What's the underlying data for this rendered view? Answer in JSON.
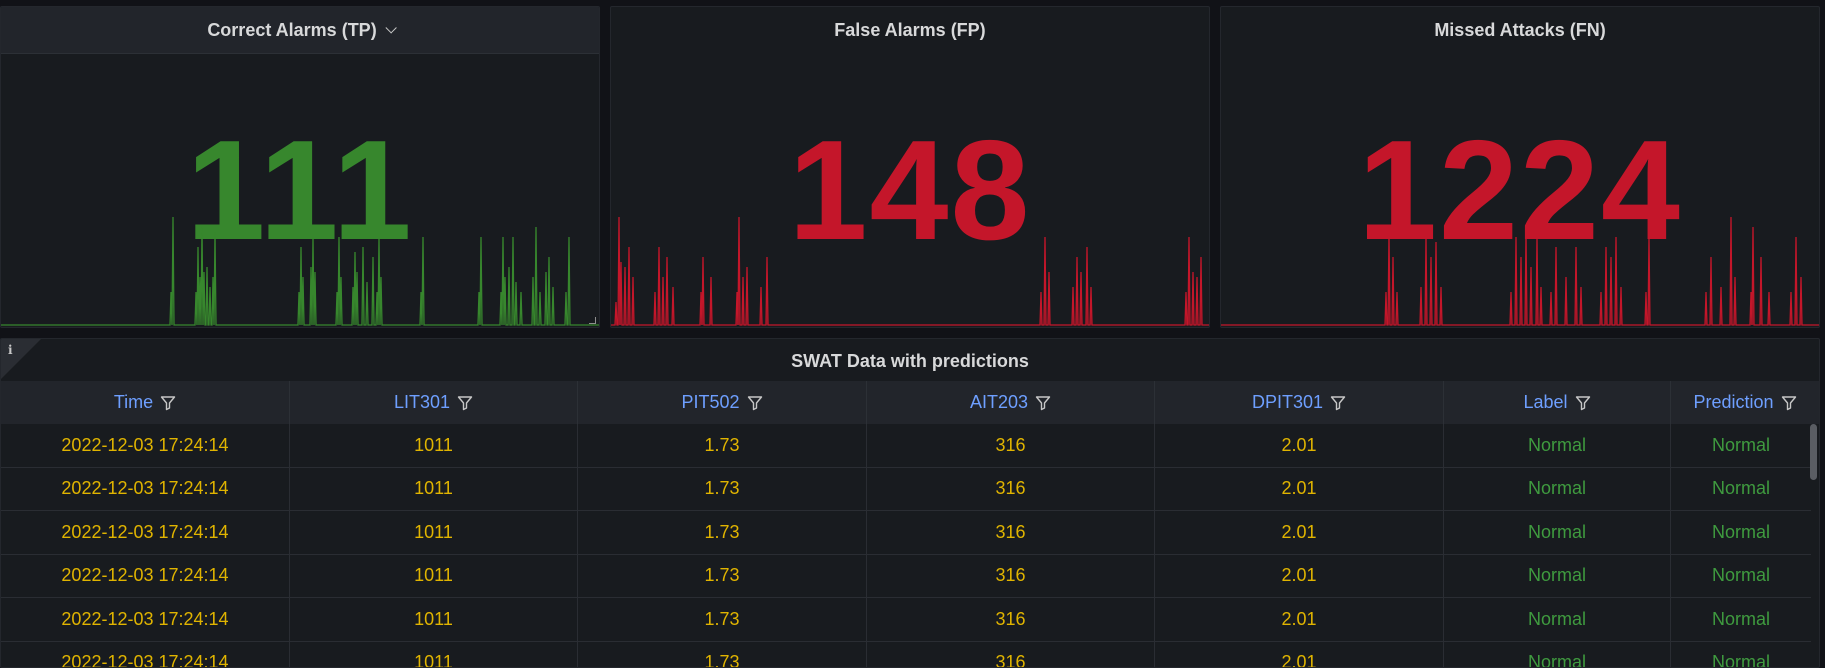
{
  "stats": [
    {
      "title": "Correct Alarms (TP)",
      "value": "111",
      "color": "#37872d",
      "sparkline": [
        0,
        0,
        0,
        0,
        0,
        0,
        0,
        0,
        0,
        0,
        0,
        0,
        0,
        0,
        0,
        0,
        0,
        0,
        0,
        0,
        0,
        0,
        0,
        0,
        0,
        0,
        0,
        0,
        0,
        0,
        0,
        0,
        0,
        0,
        0,
        0,
        0,
        0,
        0,
        0,
        0,
        0,
        0,
        0,
        0,
        0,
        0,
        0,
        0,
        0,
        0,
        0,
        0,
        0,
        0,
        0,
        0,
        0,
        0,
        0,
        0,
        0,
        0,
        0,
        0,
        0,
        0,
        0,
        0,
        0,
        0,
        0,
        0,
        0,
        0,
        0,
        0,
        0,
        0,
        0,
        0,
        0,
        0,
        0,
        0,
        0,
        0,
        0,
        0,
        0,
        0,
        0,
        0,
        0,
        0,
        0,
        0,
        0,
        0,
        0,
        0,
        0,
        0,
        0,
        0,
        0,
        0,
        0,
        0,
        0,
        0,
        0,
        0,
        0,
        0,
        0,
        0,
        0,
        0,
        0,
        0,
        0,
        0,
        0,
        0,
        0,
        0,
        0,
        0,
        0,
        0,
        0,
        0,
        0,
        0,
        0,
        0,
        0,
        0,
        0,
        0,
        0,
        0,
        0,
        0,
        0,
        0,
        0,
        0,
        0,
        0,
        0,
        0,
        0,
        0,
        0,
        0,
        0,
        0,
        0,
        0,
        0,
        0,
        0,
        0,
        0,
        0,
        0,
        0,
        0,
        0,
        0,
        0,
        0,
        0,
        0,
        0,
        0,
        0,
        0,
        0,
        0,
        0,
        0,
        0,
        0,
        0,
        0,
        0,
        0,
        0,
        0,
        0,
        0,
        0,
        0,
        0,
        0,
        0,
        0,
        0,
        0,
        0,
        0,
        0,
        0,
        0,
        0,
        0,
        0,
        0,
        0,
        0,
        0,
        0,
        0,
        0,
        0,
        0,
        0
      ]
    },
    {
      "title": "False Alarms (FP)",
      "value": "148",
      "color": "#c4162a",
      "sparkline": []
    },
    {
      "title": "Missed Attacks (FN)",
      "value": "1224",
      "color": "#c4162a",
      "sparkline": []
    }
  ],
  "table": {
    "title": "SWAT Data with predictions",
    "columns": [
      "Time",
      "LIT301",
      "PIT502",
      "AIT203",
      "DPIT301",
      "Label",
      "Prediction"
    ],
    "rows": [
      [
        "2022-12-03 17:24:14",
        "1011",
        "1.73",
        "316",
        "2.01",
        "Normal",
        "Normal"
      ],
      [
        "2022-12-03 17:24:14",
        "1011",
        "1.73",
        "316",
        "2.01",
        "Normal",
        "Normal"
      ],
      [
        "2022-12-03 17:24:14",
        "1011",
        "1.73",
        "316",
        "2.01",
        "Normal",
        "Normal"
      ],
      [
        "2022-12-03 17:24:14",
        "1011",
        "1.73",
        "316",
        "2.01",
        "Normal",
        "Normal"
      ],
      [
        "2022-12-03 17:24:14",
        "1011",
        "1.73",
        "316",
        "2.01",
        "Normal",
        "Normal"
      ],
      [
        "2022-12-03 17:24:14",
        "1011",
        "1.73",
        "316",
        "2.01",
        "Normal",
        "Normal"
      ]
    ]
  }
}
